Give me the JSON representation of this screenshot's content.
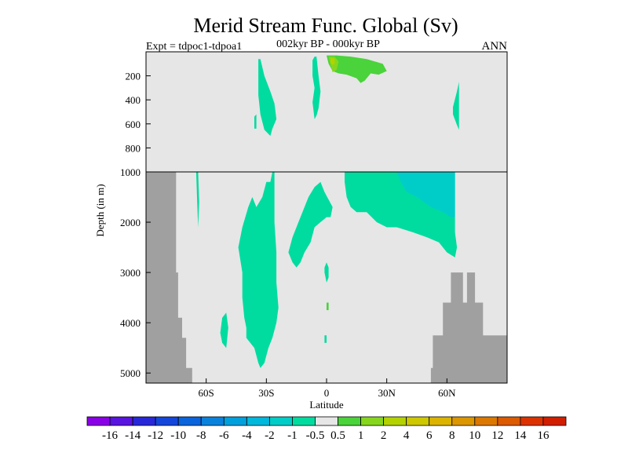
{
  "title": "Merid Stream Func. Global (Sv)",
  "expt_label": "Expt = tdpoc1-tdpoa1",
  "period_label": "002kyr BP - 000kyr BP",
  "season_label": "ANN",
  "colors": {
    "land": "#a0a0a0",
    "background": "#e6e6e6",
    "neg_1_to_neg_0_5": "#00dca0",
    "neg_2_to_neg_1": "#00cdc8",
    "pos_0_5_to_1": "#4ad33a",
    "pos_1_to_2": "#86d61e",
    "pos_2_to_4": "#b4d200"
  },
  "chart_data": {
    "type": "heatmap",
    "title": "Merid Stream Func. Global (Sv)",
    "xlabel": "Latitude",
    "ylabel": "Depth (in m)",
    "xlim": [
      -90,
      90
    ],
    "x_ticks": [
      -60,
      -30,
      0,
      30,
      60
    ],
    "x_tick_labels": [
      "60S",
      "30S",
      "0",
      "30N",
      "60N"
    ],
    "ylim_upper_panel": [
      0,
      1000
    ],
    "ylim_lower_panel": [
      1000,
      5200
    ],
    "y_ticks_upper": [
      200,
      400,
      600,
      800,
      1000
    ],
    "y_ticks_lower": [
      2000,
      3000,
      4000,
      5000
    ],
    "y_tick_labels_upper": [
      "200",
      "400",
      "600",
      "800",
      "1000"
    ],
    "y_tick_labels_lower": [
      "2000",
      "3000",
      "4000",
      "5000"
    ],
    "colorbar": {
      "boundaries": [
        "-16",
        "-14",
        "-12",
        "-10",
        "-8",
        "-6",
        "-4",
        "-2",
        "-1",
        "-0.5",
        "0.5",
        "1",
        "2",
        "4",
        "6",
        "8",
        "10",
        "12",
        "14",
        "16"
      ],
      "colors": [
        "#8a00e6",
        "#5a14e0",
        "#2828d8",
        "#1446dc",
        "#0a64dc",
        "#0a82dc",
        "#00a0dc",
        "#00b8dc",
        "#00cdc8",
        "#00dca0",
        "#e6e6e6",
        "#4ad33a",
        "#86d61e",
        "#b4d200",
        "#cdc800",
        "#dcb400",
        "#dc9600",
        "#dc7800",
        "#dc5a00",
        "#dc3200",
        "#d21e00"
      ]
    },
    "regions": [
      {
        "name": "neg_cell_upper_left",
        "bin": "-1 to -0.5",
        "color": "#00dca0",
        "points": [
          [
            -34,
            60
          ],
          [
            -33,
            60
          ],
          [
            -31,
            200
          ],
          [
            -28,
            330
          ],
          [
            -26,
            430
          ],
          [
            -25,
            560
          ],
          [
            -27,
            640
          ],
          [
            -28,
            700
          ],
          [
            -31,
            650
          ],
          [
            -33,
            520
          ],
          [
            -34,
            360
          ]
        ]
      },
      {
        "name": "neg_cell_upper_narrow",
        "bin": "-1 to -0.5",
        "color": "#00dca0",
        "points": [
          [
            -36,
            540
          ],
          [
            -35,
            520
          ],
          [
            -35,
            640
          ],
          [
            -36,
            640
          ]
        ]
      },
      {
        "name": "neg_cell_upper_eq",
        "bin": "-1 to -0.5",
        "color": "#00dca0",
        "points": [
          [
            -7,
            70
          ],
          [
            -6,
            40
          ],
          [
            -5,
            40
          ],
          [
            -4,
            200
          ],
          [
            -3,
            330
          ],
          [
            -4,
            470
          ],
          [
            -5,
            530
          ],
          [
            -6,
            560
          ],
          [
            -7,
            420
          ],
          [
            -6,
            300
          ],
          [
            -7,
            200
          ]
        ]
      },
      {
        "name": "pos_cell_upper_north",
        "bin": "0.5 to 1",
        "color": "#4ad33a",
        "points": [
          [
            0,
            30
          ],
          [
            5,
            30
          ],
          [
            12,
            40
          ],
          [
            20,
            60
          ],
          [
            28,
            100
          ],
          [
            30,
            160
          ],
          [
            26,
            190
          ],
          [
            22,
            180
          ],
          [
            19,
            240
          ],
          [
            17,
            260
          ],
          [
            15,
            220
          ],
          [
            10,
            190
          ],
          [
            6,
            180
          ],
          [
            3,
            160
          ],
          [
            1,
            100
          ]
        ]
      },
      {
        "name": "pos_core_upper",
        "bin": "1 to 2",
        "color": "#86d61e",
        "points": [
          [
            1,
            40
          ],
          [
            4,
            40
          ],
          [
            6,
            80
          ],
          [
            5,
            150
          ],
          [
            3,
            170
          ],
          [
            2,
            110
          ]
        ]
      },
      {
        "name": "pos_peak_upper",
        "bin": "2 to 4",
        "color": "#b4d200",
        "points": [
          [
            2,
            50
          ],
          [
            4,
            55
          ],
          [
            4,
            100
          ],
          [
            3,
            110
          ],
          [
            2,
            90
          ]
        ]
      },
      {
        "name": "neg_cell_upper_60n",
        "bin": "-1 to -0.5",
        "color": "#00dca0",
        "points": [
          [
            65,
            330
          ],
          [
            66,
            250
          ],
          [
            66,
            650
          ],
          [
            65,
            610
          ],
          [
            63,
            520
          ],
          [
            63,
            460
          ]
        ]
      },
      {
        "name": "neg_cell_deep_left",
        "bin": "-1 to -0.5",
        "color": "#00dca0",
        "points": [
          [
            -27,
            1000
          ],
          [
            -26,
            1000
          ],
          [
            -26,
            2000
          ],
          [
            -25,
            2600
          ],
          [
            -25,
            3200
          ],
          [
            -24,
            3700
          ],
          [
            -25,
            4000
          ],
          [
            -27,
            4300
          ],
          [
            -29,
            4500
          ],
          [
            -31,
            4800
          ],
          [
            -33,
            4900
          ],
          [
            -34,
            4800
          ],
          [
            -36,
            4500
          ],
          [
            -40,
            4300
          ],
          [
            -40,
            4100
          ],
          [
            -41,
            3900
          ],
          [
            -42,
            3500
          ],
          [
            -42,
            3000
          ],
          [
            -44,
            2500
          ],
          [
            -42,
            2100
          ],
          [
            -39,
            1700
          ],
          [
            -37,
            1500
          ],
          [
            -35,
            1700
          ],
          [
            -32,
            1500
          ],
          [
            -30,
            1200
          ],
          [
            -28,
            1200
          ]
        ]
      },
      {
        "name": "neg_cell_deep_narrow",
        "bin": "-1 to -0.5",
        "color": "#00dca0",
        "points": [
          [
            -65,
            1000
          ],
          [
            -64,
            1000
          ],
          [
            -63.5,
            1600
          ],
          [
            -64,
            2100
          ],
          [
            -64.5,
            1600
          ]
        ]
      },
      {
        "name": "neg_cell_deep_lower_left",
        "bin": "-1 to -0.5",
        "color": "#00dca0",
        "points": [
          [
            -52,
            3900
          ],
          [
            -50,
            3800
          ],
          [
            -49,
            4100
          ],
          [
            -50,
            4500
          ],
          [
            -52,
            4400
          ],
          [
            -53,
            4200
          ]
        ]
      },
      {
        "name": "neg_cell_deep_eq",
        "bin": "-1 to -0.5",
        "color": "#00dca0",
        "points": [
          [
            -19,
            2600
          ],
          [
            -17,
            2300
          ],
          [
            -14,
            2000
          ],
          [
            -12,
            1800
          ],
          [
            -9,
            1500
          ],
          [
            -6,
            1300
          ],
          [
            -3,
            1200
          ],
          [
            -1,
            1400
          ],
          [
            3,
            1700
          ],
          [
            2,
            1900
          ],
          [
            0,
            1900
          ],
          [
            -3,
            2000
          ],
          [
            -6,
            2100
          ],
          [
            -8,
            2400
          ],
          [
            -11,
            2600
          ],
          [
            -13,
            2800
          ],
          [
            -15,
            2900
          ],
          [
            -17,
            2800
          ]
        ]
      },
      {
        "name": "neg_cell_deep_eq_small",
        "bin": "-1 to -0.5",
        "color": "#00dca0",
        "points": [
          [
            -1,
            2900
          ],
          [
            0,
            2800
          ],
          [
            1,
            2900
          ],
          [
            1,
            3100
          ],
          [
            0,
            3200
          ],
          [
            -1,
            3000
          ]
        ]
      },
      {
        "name": "neg_cell_deep_north",
        "bin": "-1 to -0.5",
        "color": "#00dca0",
        "points": [
          [
            9,
            1000
          ],
          [
            64,
            1000
          ],
          [
            64,
            1800
          ],
          [
            64,
            2200
          ],
          [
            65,
            2500
          ],
          [
            64,
            2700
          ],
          [
            60,
            2600
          ],
          [
            56,
            2400
          ],
          [
            50,
            2300
          ],
          [
            43,
            2200
          ],
          [
            35,
            2100
          ],
          [
            30,
            2100
          ],
          [
            25,
            2000
          ],
          [
            20,
            1800
          ],
          [
            15,
            1800
          ],
          [
            12,
            1700
          ],
          [
            10,
            1500
          ],
          [
            9,
            1200
          ]
        ]
      },
      {
        "name": "neg_core_deep_north",
        "bin": "-2 to -1",
        "color": "#00cdc8",
        "points": [
          [
            35,
            1000
          ],
          [
            64,
            1000
          ],
          [
            64,
            1900
          ],
          [
            62,
            1900
          ],
          [
            58,
            1800
          ],
          [
            52,
            1700
          ],
          [
            45,
            1500
          ],
          [
            40,
            1400
          ],
          [
            37,
            1200
          ]
        ]
      },
      {
        "name": "pos_spot_deep",
        "bin": "0.5 to 1",
        "color": "#4ad33a",
        "points": [
          [
            0,
            3600
          ],
          [
            1,
            3600
          ],
          [
            1,
            3750
          ],
          [
            0,
            3750
          ]
        ]
      },
      {
        "name": "neg_spot_deep",
        "bin": "-1 to -0.5",
        "color": "#00dca0",
        "points": [
          [
            -1,
            4250
          ],
          [
            0,
            4250
          ],
          [
            0,
            4400
          ],
          [
            -1,
            4400
          ]
        ]
      }
    ],
    "land": [
      {
        "name": "antarctic_shelf",
        "steps": [
          [
            -90,
            1000
          ],
          [
            -75,
            1000
          ],
          [
            -75,
            3000
          ],
          [
            -74,
            3000
          ],
          [
            -74,
            3900
          ],
          [
            -72,
            3900
          ],
          [
            -72,
            4300
          ],
          [
            -70,
            4300
          ],
          [
            -70,
            4900
          ],
          [
            -67,
            4900
          ],
          [
            -67,
            5200
          ],
          [
            -90,
            5200
          ]
        ]
      },
      {
        "name": "north_sill",
        "steps": [
          [
            90,
            4250
          ],
          [
            78,
            4250
          ],
          [
            78,
            3600
          ],
          [
            74,
            3600
          ],
          [
            74,
            3000
          ],
          [
            70,
            3000
          ],
          [
            70,
            3600
          ],
          [
            68,
            3600
          ],
          [
            68,
            3000
          ],
          [
            62,
            3000
          ],
          [
            62,
            3600
          ],
          [
            58,
            3600
          ],
          [
            58,
            4250
          ],
          [
            53,
            4250
          ],
          [
            53,
            4900
          ],
          [
            52,
            4900
          ],
          [
            52,
            5200
          ],
          [
            90,
            5200
          ]
        ]
      }
    ]
  },
  "footer": {
    "xlabel": "Latitude",
    "ylabel": "Depth (in m)"
  }
}
